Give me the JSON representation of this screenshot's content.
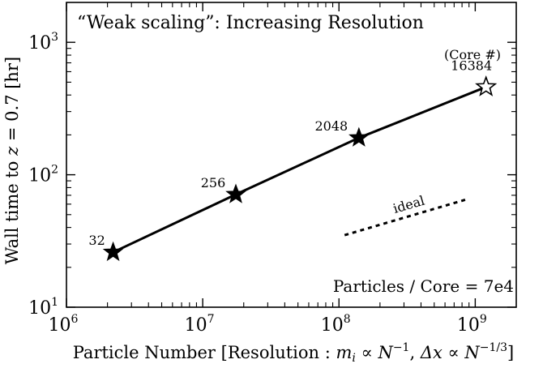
{
  "chart_data": {
    "type": "scatter",
    "title": "“Weak scaling”: Increasing Resolution",
    "xlabel": "Particle Number [Resolution : m_i ∝ N^−1, Δx ∝ N^−1/3]",
    "xlabel_parts": {
      "lead": "Particle Number [Resolution : ",
      "m": "m",
      "i": "i",
      "prop1": " ∝ ",
      "N1": "N",
      "exp1": "−1",
      "comma": ", ",
      "dx": "Δx",
      "prop2": " ∝ ",
      "N2": "N",
      "exp2": "−1/3",
      "close": "]"
    },
    "ylabel": "Wall time to z = 0.7 [hr]",
    "ylabel_parts": {
      "lead": "Wall time to ",
      "z": "z",
      "rest": " = 0.7 [hr]"
    },
    "xscale": "log",
    "yscale": "log",
    "xlim": [
      1000000,
      2000000000
    ],
    "ylim": [
      10,
      2000
    ],
    "x_ticks": [
      {
        "value": 1000000,
        "base": "10",
        "exp": "6"
      },
      {
        "value": 10000000,
        "base": "10",
        "exp": "7"
      },
      {
        "value": 100000000,
        "base": "10",
        "exp": "8"
      },
      {
        "value": 1000000000,
        "base": "10",
        "exp": "9"
      }
    ],
    "y_ticks": [
      {
        "value": 10,
        "base": "10",
        "exp": "1"
      },
      {
        "value": 100,
        "base": "10",
        "exp": "2"
      },
      {
        "value": 1000,
        "base": "10",
        "exp": "3"
      }
    ],
    "series": [
      {
        "points": [
          {
            "x": 2200000,
            "y": 26,
            "label": "32",
            "marker": "filled-star"
          },
          {
            "x": 17500000,
            "y": 71,
            "label": "256",
            "marker": "filled-star"
          },
          {
            "x": 140000000,
            "y": 190,
            "label": "2048",
            "marker": "filled-star"
          },
          {
            "x": 1200000000,
            "y": 460,
            "label": "16384",
            "marker": "open-star"
          }
        ]
      }
    ],
    "ideal_line": {
      "label": "ideal",
      "x": [
        110000000,
        900000000
      ],
      "y": [
        35,
        66
      ],
      "style": "dotted"
    },
    "annotations": {
      "core_header": "(Core #)",
      "particles_per_core": "Particles / Core = 7e4"
    },
    "grid": false,
    "legend": "none"
  }
}
